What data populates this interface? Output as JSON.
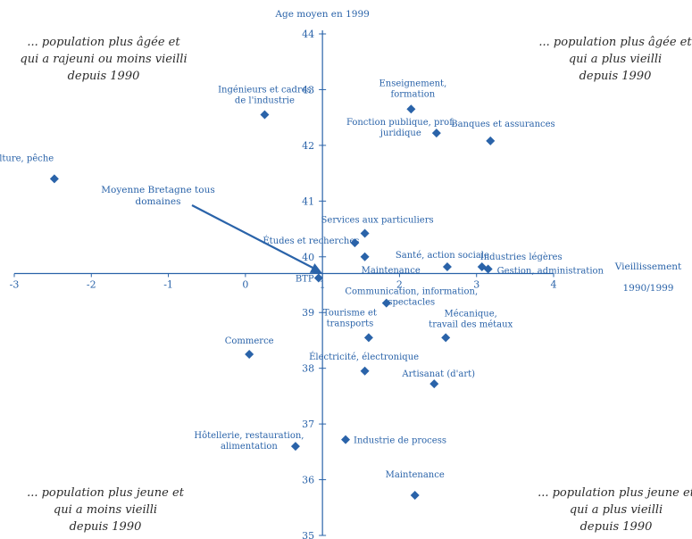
{
  "chart_data": {
    "type": "scatter",
    "xlabel": [
      "Vieillissement",
      "1990/1999"
    ],
    "ylabel": "Age moyen en 1999",
    "xlim": [
      -3,
      4
    ],
    "ylim": [
      35,
      44
    ],
    "x_ticks": [
      -3,
      -2,
      -1,
      0,
      1,
      2,
      3,
      4
    ],
    "y_ticks": [
      35,
      36,
      37,
      38,
      39,
      40,
      41,
      42,
      43,
      44
    ],
    "origin": {
      "x": 1.0,
      "y": 39.7
    },
    "grid": false,
    "legend": "none",
    "accent_color": "#2a63a9",
    "quadrant_notes": {
      "top_left": [
        "... population plus âgée et",
        "qui a rajeuni ou moins vieilli",
        "depuis 1990"
      ],
      "top_right": [
        "... population plus âgée et",
        "qui a plus vieilli",
        "depuis 1990"
      ],
      "bottom_left": [
        "... population plus jeune et",
        "qui a moins vieilli",
        "depuis 1990"
      ],
      "bottom_right": [
        "... population plus jeune et",
        "qui a plus vieilli",
        "depuis 1990"
      ]
    },
    "mean_annotation": {
      "label": [
        "Moyenne Bretagne tous",
        "domaines"
      ],
      "x": 1.0,
      "y": 39.7
    },
    "points": [
      {
        "label": [
          "Agriculture, pêche"
        ],
        "x": -2.48,
        "y": 41.4
      },
      {
        "label": [
          "Ingénieurs et cadres",
          "de l'industrie"
        ],
        "x": 0.25,
        "y": 42.55
      },
      {
        "label": [
          "Enseignement,",
          "formation"
        ],
        "x": 2.15,
        "y": 42.65
      },
      {
        "label": [
          "Fonction publique, prof.",
          "juridique"
        ],
        "x": 2.48,
        "y": 42.22
      },
      {
        "label": [
          "Banques et assurances"
        ],
        "x": 3.18,
        "y": 42.08
      },
      {
        "label": [
          "Services aux particuliers"
        ],
        "x": 1.55,
        "y": 40.42
      },
      {
        "label": [
          "Études et recherches"
        ],
        "x": 1.42,
        "y": 40.25
      },
      {
        "label": [
          "Maintenance"
        ],
        "x": 1.55,
        "y": 40.0
      },
      {
        "label": [
          "Santé, action sociale"
        ],
        "x": 2.62,
        "y": 39.82
      },
      {
        "label": [
          "Industries légères"
        ],
        "x": 3.07,
        "y": 39.82
      },
      {
        "label": [
          "Gestion, administration"
        ],
        "x": 3.15,
        "y": 39.78
      },
      {
        "label": [
          "BTP"
        ],
        "x": 0.95,
        "y": 39.62
      },
      {
        "label": [
          "Communication, information,",
          "spectacles"
        ],
        "x": 1.83,
        "y": 39.17
      },
      {
        "label": [
          "Tourisme et",
          "transports"
        ],
        "x": 1.6,
        "y": 38.55
      },
      {
        "label": [
          "Mécanique,",
          "travail des métaux"
        ],
        "x": 2.6,
        "y": 38.55
      },
      {
        "label": [
          "Commerce"
        ],
        "x": 0.05,
        "y": 38.25
      },
      {
        "label": [
          "Électricité, électronique"
        ],
        "x": 1.55,
        "y": 37.95
      },
      {
        "label": [
          "Artisanat (d'art)"
        ],
        "x": 2.45,
        "y": 37.72
      },
      {
        "label": [
          "Industrie de process"
        ],
        "x": 1.3,
        "y": 36.72
      },
      {
        "label": [
          "Hôtellerie, restauration,",
          "alimentation"
        ],
        "x": 0.65,
        "y": 36.6
      },
      {
        "label": [
          "Maintenance"
        ],
        "x": 2.2,
        "y": 35.72
      }
    ]
  }
}
